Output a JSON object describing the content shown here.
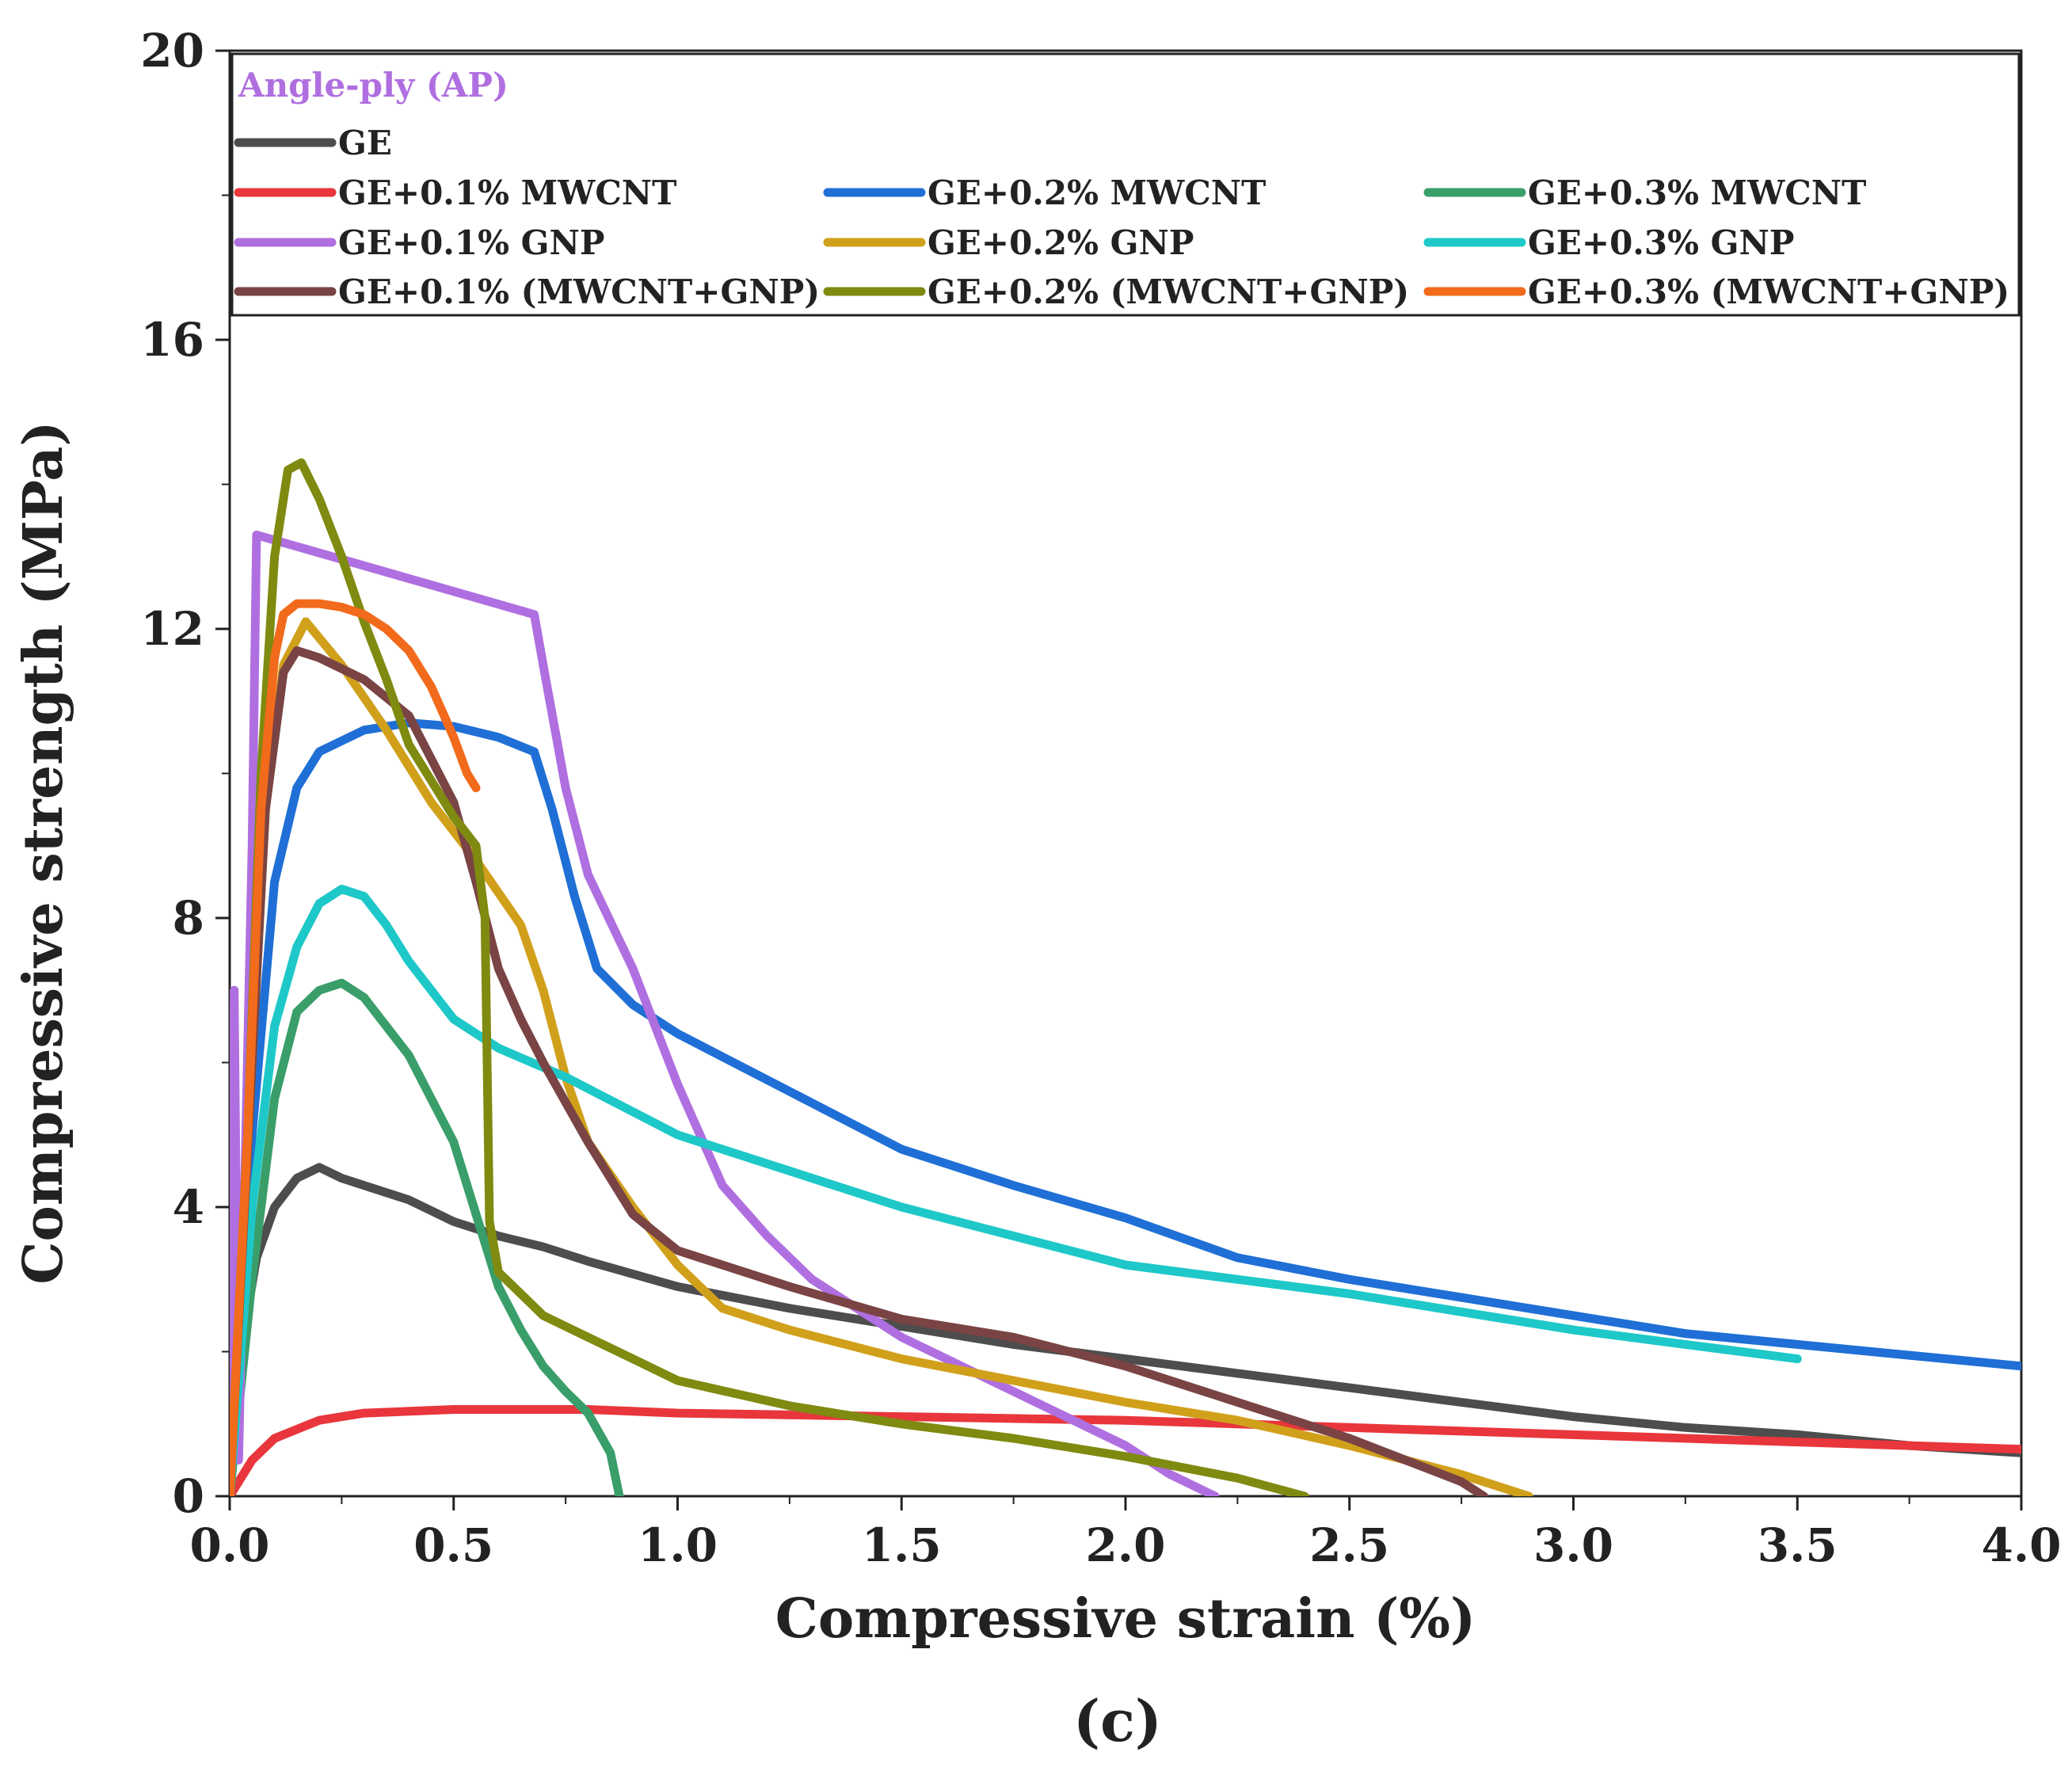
{
  "chart_data": {
    "type": "line",
    "title": "",
    "panel_label": "(c)",
    "legend_title": "Angle-ply (AP)",
    "xlabel": "Compressive strain (%)",
    "ylabel": "Compressive strength (MPa)",
    "xlim": [
      0,
      4.0
    ],
    "ylim": [
      0,
      20
    ],
    "xticks": [
      "0.0",
      "0.5",
      "1.0",
      "1.5",
      "2.0",
      "2.5",
      "3.0",
      "3.5",
      "4.0"
    ],
    "yticks": [
      "0",
      "4",
      "8",
      "12",
      "16",
      "20"
    ],
    "legend_position": "top, inside plot area (3 columns)",
    "colors": {
      "legend_title": "#b06fe0",
      "axis": "#222222"
    },
    "series": [
      {
        "name": "GE",
        "color": "#4d4d4d",
        "legend_row": 0,
        "legend_col": 0,
        "x": [
          0,
          0.03,
          0.06,
          0.1,
          0.15,
          0.2,
          0.25,
          0.3,
          0.4,
          0.5,
          0.6,
          0.7,
          0.8,
          1.0,
          1.25,
          1.5,
          1.75,
          2.0,
          2.25,
          2.5,
          2.75,
          3.0,
          3.25,
          3.5,
          3.75,
          4.0
        ],
        "y": [
          0,
          2.2,
          3.3,
          4.0,
          4.4,
          4.55,
          4.4,
          4.3,
          4.1,
          3.8,
          3.6,
          3.45,
          3.25,
          2.9,
          2.6,
          2.35,
          2.1,
          1.9,
          1.7,
          1.5,
          1.3,
          1.1,
          0.95,
          0.85,
          0.7,
          0.6
        ]
      },
      {
        "name": "GE+0.1% MWCNT",
        "color": "#e8363c",
        "legend_row": 1,
        "legend_col": 0,
        "x": [
          0,
          0.05,
          0.1,
          0.2,
          0.3,
          0.5,
          0.8,
          1.0,
          1.5,
          2.0,
          2.5,
          3.0,
          3.5,
          4.0
        ],
        "y": [
          0,
          0.5,
          0.8,
          1.05,
          1.15,
          1.2,
          1.2,
          1.15,
          1.1,
          1.05,
          0.95,
          0.85,
          0.75,
          0.65
        ]
      },
      {
        "name": "GE+0.2% MWCNT",
        "color": "#1f6fd6",
        "legend_row": 1,
        "legend_col": 1,
        "x": [
          0,
          0.05,
          0.1,
          0.15,
          0.2,
          0.3,
          0.4,
          0.5,
          0.6,
          0.68,
          0.72,
          0.77,
          0.82,
          0.9,
          1.0,
          1.25,
          1.5,
          1.75,
          2.0,
          2.25,
          2.5,
          2.75,
          3.0,
          3.25,
          3.5,
          3.75,
          4.0
        ],
        "y": [
          0,
          5.0,
          8.5,
          9.8,
          10.3,
          10.6,
          10.7,
          10.65,
          10.5,
          10.3,
          9.5,
          8.3,
          7.3,
          6.8,
          6.4,
          5.6,
          4.8,
          4.3,
          3.85,
          3.3,
          3.0,
          2.75,
          2.5,
          2.25,
          2.1,
          1.95,
          1.8
        ]
      },
      {
        "name": "GE+0.3% MWCNT",
        "color": "#3a9e6a",
        "legend_row": 1,
        "legend_col": 2,
        "x": [
          0,
          0.05,
          0.1,
          0.15,
          0.2,
          0.25,
          0.3,
          0.4,
          0.5,
          0.55,
          0.6,
          0.65,
          0.7,
          0.75,
          0.8,
          0.85,
          0.87
        ],
        "y": [
          0,
          3.0,
          5.5,
          6.7,
          7.0,
          7.1,
          6.9,
          6.1,
          4.9,
          3.9,
          2.9,
          2.3,
          1.8,
          1.45,
          1.15,
          0.6,
          0
        ]
      },
      {
        "name": "GE+0.1% GNP",
        "color": "#b06fe0",
        "legend_row": 2,
        "legend_col": 0,
        "x": [
          0,
          0.01,
          0.02,
          0.05,
          0.06,
          0.68,
          0.7,
          0.75,
          0.8,
          0.9,
          1.0,
          1.1,
          1.2,
          1.3,
          1.4,
          1.5,
          1.6,
          1.7,
          1.8,
          1.9,
          2.0,
          2.1,
          2.2
        ],
        "y": [
          0,
          7.0,
          0.5,
          9.0,
          13.3,
          12.2,
          11.5,
          9.8,
          8.6,
          7.3,
          5.7,
          4.3,
          3.6,
          3.0,
          2.6,
          2.2,
          1.9,
          1.6,
          1.3,
          1.0,
          0.7,
          0.3,
          0
        ]
      },
      {
        "name": "GE+0.2% GNP",
        "color": "#d1a01b",
        "legend_row": 2,
        "legend_col": 1,
        "x": [
          0,
          0.05,
          0.08,
          0.12,
          0.17,
          0.25,
          0.35,
          0.45,
          0.55,
          0.65,
          0.7,
          0.75,
          0.8,
          0.9,
          1.0,
          1.1,
          1.25,
          1.5,
          1.75,
          2.0,
          2.25,
          2.5,
          2.75,
          2.85,
          2.9
        ],
        "y": [
          0,
          6.0,
          9.5,
          11.5,
          12.1,
          11.5,
          10.6,
          9.6,
          8.8,
          7.9,
          7.0,
          5.8,
          4.9,
          4.0,
          3.2,
          2.6,
          2.3,
          1.9,
          1.6,
          1.3,
          1.05,
          0.7,
          0.3,
          0.1,
          0
        ]
      },
      {
        "name": "GE+0.3% GNP",
        "color": "#1ec8c8",
        "legend_row": 2,
        "legend_col": 2,
        "x": [
          0,
          0.05,
          0.1,
          0.15,
          0.2,
          0.25,
          0.3,
          0.35,
          0.4,
          0.5,
          0.6,
          0.75,
          1.0,
          1.25,
          1.5,
          1.75,
          2.0,
          2.25,
          2.5,
          2.75,
          3.0,
          3.25,
          3.5
        ],
        "y": [
          0,
          4.0,
          6.5,
          7.6,
          8.2,
          8.4,
          8.3,
          7.9,
          7.4,
          6.6,
          6.2,
          5.8,
          5.0,
          4.5,
          4.0,
          3.6,
          3.2,
          3.0,
          2.8,
          2.55,
          2.3,
          2.1,
          1.9
        ]
      },
      {
        "name": "GE+0.1% (MWCNT+GNP)",
        "color": "#7a4444",
        "legend_row": 3,
        "legend_col": 0,
        "x": [
          0,
          0.05,
          0.08,
          0.12,
          0.15,
          0.2,
          0.3,
          0.4,
          0.5,
          0.55,
          0.6,
          0.65,
          0.7,
          0.8,
          0.9,
          1.0,
          1.25,
          1.5,
          1.75,
          2.0,
          2.25,
          2.5,
          2.75,
          2.8
        ],
        "y": [
          0,
          6.0,
          9.5,
          11.4,
          11.7,
          11.6,
          11.3,
          10.8,
          9.6,
          8.5,
          7.3,
          6.6,
          6.0,
          4.9,
          3.9,
          3.4,
          2.9,
          2.45,
          2.2,
          1.8,
          1.3,
          0.8,
          0.2,
          0
        ]
      },
      {
        "name": "GE+0.2% (MWCNT+GNP)",
        "color": "#7f8a10",
        "legend_row": 3,
        "legend_col": 1,
        "x": [
          0,
          0.04,
          0.07,
          0.1,
          0.13,
          0.16,
          0.2,
          0.25,
          0.3,
          0.35,
          0.4,
          0.45,
          0.5,
          0.55,
          0.57,
          0.58,
          0.6,
          0.65,
          0.7,
          0.8,
          0.9,
          1.0,
          1.25,
          1.5,
          1.75,
          2.0,
          2.25,
          2.4
        ],
        "y": [
          0,
          5.0,
          10.0,
          13.0,
          14.2,
          14.3,
          13.8,
          13.0,
          12.1,
          11.3,
          10.4,
          9.9,
          9.4,
          9.0,
          8.0,
          3.8,
          3.1,
          2.8,
          2.5,
          2.2,
          1.9,
          1.6,
          1.25,
          1.0,
          0.8,
          0.55,
          0.25,
          0
        ]
      },
      {
        "name": "GE+0.3% (MWCNT+GNP)",
        "color": "#f26a1b",
        "legend_row": 3,
        "legend_col": 2,
        "x": [
          0,
          0.04,
          0.07,
          0.1,
          0.12,
          0.15,
          0.2,
          0.25,
          0.3,
          0.35,
          0.4,
          0.45,
          0.5,
          0.53,
          0.55
        ],
        "y": [
          0,
          5.0,
          9.5,
          11.6,
          12.2,
          12.35,
          12.35,
          12.3,
          12.2,
          12.0,
          11.7,
          11.2,
          10.5,
          10.0,
          9.8
        ]
      }
    ]
  }
}
